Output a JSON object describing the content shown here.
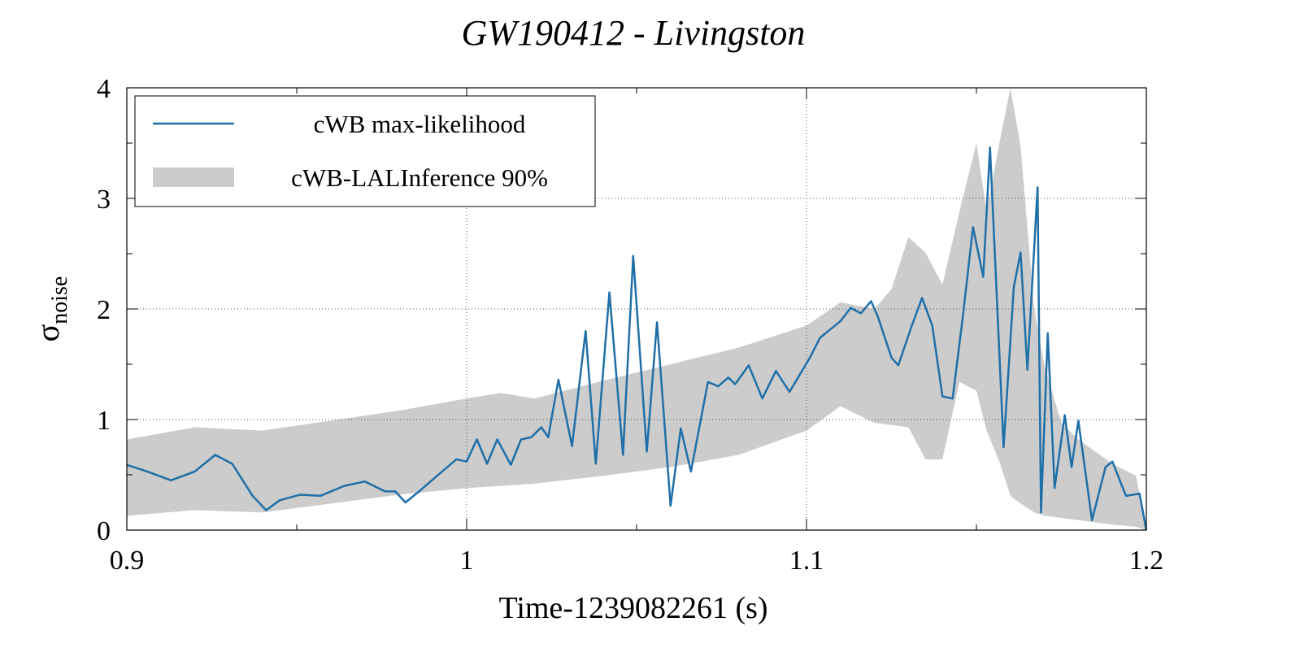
{
  "chart_data": {
    "type": "line",
    "title": "GW190412 - Livingston",
    "xlabel": "Time-1239082261 (s)",
    "ylabel": {
      "symbol": "σ",
      "subscript": "noise"
    },
    "xlim": [
      0.9,
      1.2
    ],
    "ylim": [
      0,
      4
    ],
    "xticks": [
      0.9,
      1,
      1.1,
      1.2
    ],
    "yticks": [
      0,
      1,
      2,
      3,
      4
    ],
    "xminorticks": [
      0.95,
      1.05,
      1.15
    ],
    "yminorticks": [
      0.5,
      1.5,
      2.5,
      3.5
    ],
    "grid": true,
    "legend": "upper left",
    "series": [
      {
        "name": "cWB max-likelihood",
        "kind": "line",
        "color": "#1f6fa8",
        "x": [
          0.9,
          0.906,
          0.913,
          0.92,
          0.926,
          0.931,
          0.937,
          0.941,
          0.945,
          0.951,
          0.957,
          0.964,
          0.97,
          0.976,
          0.979,
          0.982,
          0.986,
          0.992,
          0.997,
          1.0,
          1.003,
          1.006,
          1.009,
          1.013,
          1.016,
          1.019,
          1.022,
          1.024,
          1.027,
          1.031,
          1.035,
          1.038,
          1.042,
          1.046,
          1.049,
          1.053,
          1.056,
          1.06,
          1.063,
          1.066,
          1.071,
          1.074,
          1.077,
          1.079,
          1.083,
          1.087,
          1.091,
          1.095,
          1.101,
          1.104,
          1.11,
          1.113,
          1.116,
          1.119,
          1.121,
          1.125,
          1.127,
          1.131,
          1.134,
          1.137,
          1.14,
          1.143,
          1.146,
          1.149,
          1.152,
          1.154,
          1.158,
          1.161,
          1.163,
          1.165,
          1.168,
          1.169,
          1.171,
          1.173,
          1.176,
          1.178,
          1.18,
          1.184,
          1.188,
          1.19,
          1.194,
          1.198,
          1.2
        ],
        "values": [
          0.59,
          0.53,
          0.45,
          0.53,
          0.68,
          0.6,
          0.31,
          0.18,
          0.27,
          0.32,
          0.31,
          0.4,
          0.44,
          0.35,
          0.35,
          0.25,
          0.35,
          0.51,
          0.64,
          0.62,
          0.82,
          0.6,
          0.82,
          0.59,
          0.82,
          0.84,
          0.93,
          0.84,
          1.36,
          0.76,
          1.8,
          0.6,
          2.15,
          0.68,
          2.48,
          0.71,
          1.88,
          0.22,
          0.92,
          0.53,
          1.34,
          1.3,
          1.38,
          1.32,
          1.49,
          1.19,
          1.44,
          1.25,
          1.56,
          1.74,
          1.89,
          2.01,
          1.96,
          2.07,
          1.93,
          1.56,
          1.49,
          1.85,
          2.1,
          1.85,
          1.21,
          1.19,
          1.93,
          2.74,
          2.29,
          3.46,
          0.75,
          2.2,
          2.51,
          1.45,
          3.1,
          0.16,
          1.78,
          0.38,
          1.04,
          0.57,
          0.99,
          0.09,
          0.57,
          0.62,
          0.31,
          0.33,
          0.0
        ]
      },
      {
        "name": "cWB-LALInference 90%",
        "kind": "band",
        "color": "#cccccc",
        "x": [
          0.9,
          0.92,
          0.94,
          0.96,
          0.98,
          1.0,
          1.01,
          1.02,
          1.04,
          1.06,
          1.08,
          1.1,
          1.11,
          1.12,
          1.125,
          1.13,
          1.135,
          1.14,
          1.145,
          1.15,
          1.153,
          1.157,
          1.16,
          1.163,
          1.167,
          1.17,
          1.175,
          1.18,
          1.19,
          1.197,
          1.2
        ],
        "lower": [
          0.13,
          0.18,
          0.16,
          0.24,
          0.32,
          0.38,
          0.4,
          0.42,
          0.49,
          0.57,
          0.68,
          0.9,
          1.12,
          0.97,
          0.95,
          0.93,
          0.64,
          0.64,
          1.34,
          1.26,
          0.9,
          0.6,
          0.31,
          0.24,
          0.16,
          0.13,
          0.11,
          0.09,
          0.05,
          0.03,
          0.0
        ],
        "upper": [
          0.82,
          0.93,
          0.9,
          0.99,
          1.08,
          1.19,
          1.24,
          1.19,
          1.35,
          1.5,
          1.65,
          1.85,
          2.06,
          2.0,
          2.18,
          2.65,
          2.51,
          2.22,
          2.88,
          3.5,
          2.88,
          3.54,
          4.0,
          3.47,
          2.0,
          1.49,
          0.97,
          0.82,
          0.6,
          0.49,
          0.0
        ]
      }
    ]
  }
}
